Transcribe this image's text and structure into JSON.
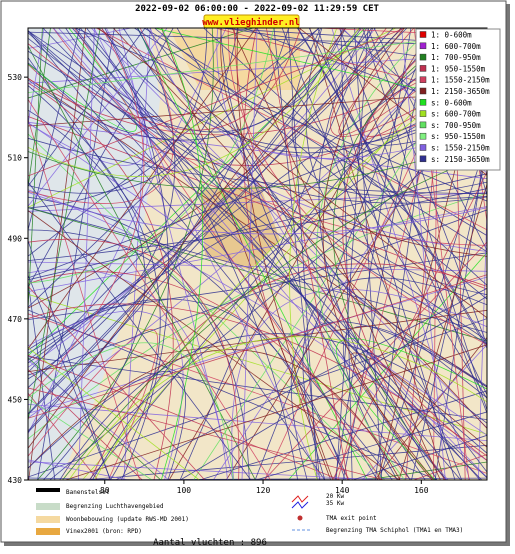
{
  "header": {
    "title": "2022-09-02 06:00:00 - 2022-09-02 11:29:59 CET",
    "site": "www.vlieghinder.nl"
  },
  "map": {
    "xlim": [
      60.6,
      176.6
    ],
    "ylim": [
      430,
      542.2
    ],
    "xticks": [
      80,
      100,
      120,
      140,
      160
    ],
    "yticks": [
      430,
      450,
      470,
      490,
      510,
      530
    ],
    "legend": [
      {
        "name": "1: 0-600m",
        "color": "#e00000"
      },
      {
        "name": "1: 600-700m",
        "color": "#a020d0"
      },
      {
        "name": "1: 700-950m",
        "color": "#208020"
      },
      {
        "name": "1: 950-1550m",
        "color": "#c03050"
      },
      {
        "name": "1: 1550-2150m",
        "color": "#d04060"
      },
      {
        "name": "1: 2150-3650m",
        "color": "#802020"
      },
      {
        "name": "s: 0-600m",
        "color": "#20e020"
      },
      {
        "name": "s: 600-700m",
        "color": "#a0e020"
      },
      {
        "name": "s: 700-950m",
        "color": "#60e060"
      },
      {
        "name": "s: 950-1550m",
        "color": "#80f080"
      },
      {
        "name": "s: 1550-2150m",
        "color": "#8060e0"
      },
      {
        "name": "s: 2150-3650m",
        "color": "#303090"
      }
    ]
  },
  "footer": {
    "items": [
      "Banenstelsel",
      "Begrenzing Luchthavengebied",
      "Woonbebouwing (update RWS-MD 2001)",
      "Vinex2001 (bron: RPD)"
    ],
    "wind": [
      "20 Kw",
      "35 Kw"
    ],
    "exit": "TMA exit point",
    "tma": "Begrenzing TMA Schiphol  (TMA1 en TMA3)",
    "count": "Aantal vluchten : 896"
  }
}
